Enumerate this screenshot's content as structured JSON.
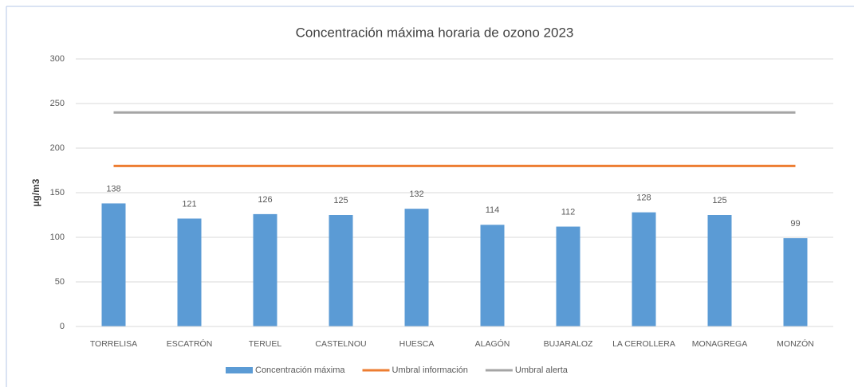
{
  "chart_data": {
    "type": "bar",
    "title": "Concentración máxima horaria de ozono 2023",
    "ylabel": "µg/m3",
    "categories": [
      "TORRELISA",
      "ESCATRÓN",
      "TERUEL",
      "CASTELNOU",
      "HUESCA",
      "ALAGÓN",
      "BUJARALOZ",
      "LA CEROLLERA",
      "MONAGREGA",
      "MONZÓN"
    ],
    "series": [
      {
        "name": "Concentración máxima",
        "type": "bar",
        "color": "#5b9bd5",
        "values": [
          138,
          121,
          126,
          125,
          132,
          114,
          112,
          128,
          125,
          99
        ]
      },
      {
        "name": "Umbral información",
        "type": "line",
        "color": "#ed7d31",
        "values": [
          180,
          180,
          180,
          180,
          180,
          180,
          180,
          180,
          180,
          180
        ]
      },
      {
        "name": "Umbral alerta",
        "type": "line",
        "color": "#a5a5a5",
        "values": [
          240,
          240,
          240,
          240,
          240,
          240,
          240,
          240,
          240,
          240
        ]
      }
    ],
    "ylim": [
      0,
      300
    ],
    "yticks": [
      0,
      50,
      100,
      150,
      200,
      250,
      300
    ],
    "grid": true,
    "legend": "bottom"
  }
}
